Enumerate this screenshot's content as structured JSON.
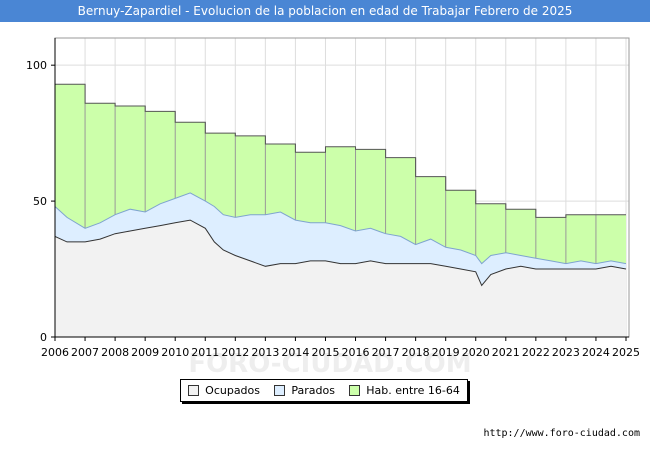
{
  "header": {
    "title": "Bernuy-Zapardiel - Evolucion de la poblacion en edad de Trabajar Febrero de 2025"
  },
  "source": "http://www.foro-ciudad.com",
  "watermark": "FORO-CIUDAD.COM",
  "legend": [
    {
      "label": "Ocupados",
      "color": "#f2f2f2"
    },
    {
      "label": "Parados",
      "color": "#ddeeff"
    },
    {
      "label": "Hab. entre 16-64",
      "color": "#ccffaa"
    }
  ],
  "chart_data": {
    "type": "area",
    "title": "Bernuy-Zapardiel - Evolucion de la poblacion en edad de Trabajar Febrero de 2025",
    "x_ticks": [
      "2006",
      "2007",
      "2008",
      "2009",
      "2010",
      "2011",
      "2012",
      "2013",
      "2014",
      "2015",
      "2016",
      "2017",
      "2018",
      "2019",
      "2020",
      "2021",
      "2022",
      "2023",
      "2024",
      "2025"
    ],
    "y_ticks": [
      0,
      50,
      100
    ],
    "ylim": [
      0,
      110
    ],
    "xlim": [
      2006,
      2025.1
    ],
    "grid": true,
    "legend_position": "bottom",
    "series": [
      {
        "name": "Hab. entre 16-64",
        "color": "#ccffaa",
        "x": [
          2006,
          2007,
          2008,
          2009,
          2010,
          2011,
          2012,
          2013,
          2014,
          2015,
          2016,
          2017,
          2018,
          2019,
          2020,
          2021,
          2022,
          2023,
          2024
        ],
        "values": [
          93,
          86,
          85,
          83,
          79,
          75,
          74,
          71,
          68,
          70,
          69,
          66,
          59,
          54,
          49,
          47,
          44,
          45,
          45
        ]
      },
      {
        "name": "Parados",
        "color": "#ddeeff",
        "points": [
          [
            2006,
            48
          ],
          [
            2006.4,
            44
          ],
          [
            2007,
            40
          ],
          [
            2007.5,
            42
          ],
          [
            2008,
            45
          ],
          [
            2008.5,
            47
          ],
          [
            2009,
            46
          ],
          [
            2009.5,
            49
          ],
          [
            2010,
            51
          ],
          [
            2010.5,
            53
          ],
          [
            2011,
            50
          ],
          [
            2011.3,
            48
          ],
          [
            2011.6,
            45
          ],
          [
            2012,
            44
          ],
          [
            2012.5,
            45
          ],
          [
            2013,
            45
          ],
          [
            2013.5,
            46
          ],
          [
            2014,
            43
          ],
          [
            2014.5,
            42
          ],
          [
            2015,
            42
          ],
          [
            2015.5,
            41
          ],
          [
            2016,
            39
          ],
          [
            2016.5,
            40
          ],
          [
            2017,
            38
          ],
          [
            2017.5,
            37
          ],
          [
            2018,
            34
          ],
          [
            2018.5,
            36
          ],
          [
            2019,
            33
          ],
          [
            2019.5,
            32
          ],
          [
            2020,
            30
          ],
          [
            2020.2,
            27
          ],
          [
            2020.5,
            30
          ],
          [
            2021,
            31
          ],
          [
            2021.5,
            30
          ],
          [
            2022,
            29
          ],
          [
            2022.5,
            28
          ],
          [
            2023,
            27
          ],
          [
            2023.5,
            28
          ],
          [
            2024,
            27
          ],
          [
            2024.5,
            28
          ],
          [
            2025,
            27
          ]
        ]
      },
      {
        "name": "Ocupados",
        "color": "#f2f2f2",
        "points": [
          [
            2006,
            37
          ],
          [
            2006.4,
            35
          ],
          [
            2007,
            35
          ],
          [
            2007.5,
            36
          ],
          [
            2008,
            38
          ],
          [
            2008.5,
            39
          ],
          [
            2009,
            40
          ],
          [
            2009.5,
            41
          ],
          [
            2010,
            42
          ],
          [
            2010.5,
            43
          ],
          [
            2011,
            40
          ],
          [
            2011.3,
            35
          ],
          [
            2011.6,
            32
          ],
          [
            2012,
            30
          ],
          [
            2012.5,
            28
          ],
          [
            2013,
            26
          ],
          [
            2013.5,
            27
          ],
          [
            2014,
            27
          ],
          [
            2014.5,
            28
          ],
          [
            2015,
            28
          ],
          [
            2015.5,
            27
          ],
          [
            2016,
            27
          ],
          [
            2016.5,
            28
          ],
          [
            2017,
            27
          ],
          [
            2017.5,
            27
          ],
          [
            2018,
            27
          ],
          [
            2018.5,
            27
          ],
          [
            2019,
            26
          ],
          [
            2019.5,
            25
          ],
          [
            2020,
            24
          ],
          [
            2020.2,
            19
          ],
          [
            2020.5,
            23
          ],
          [
            2021,
            25
          ],
          [
            2021.5,
            26
          ],
          [
            2022,
            25
          ],
          [
            2022.5,
            25
          ],
          [
            2023,
            25
          ],
          [
            2023.5,
            25
          ],
          [
            2024,
            25
          ],
          [
            2024.5,
            26
          ],
          [
            2025,
            25
          ]
        ]
      }
    ]
  }
}
